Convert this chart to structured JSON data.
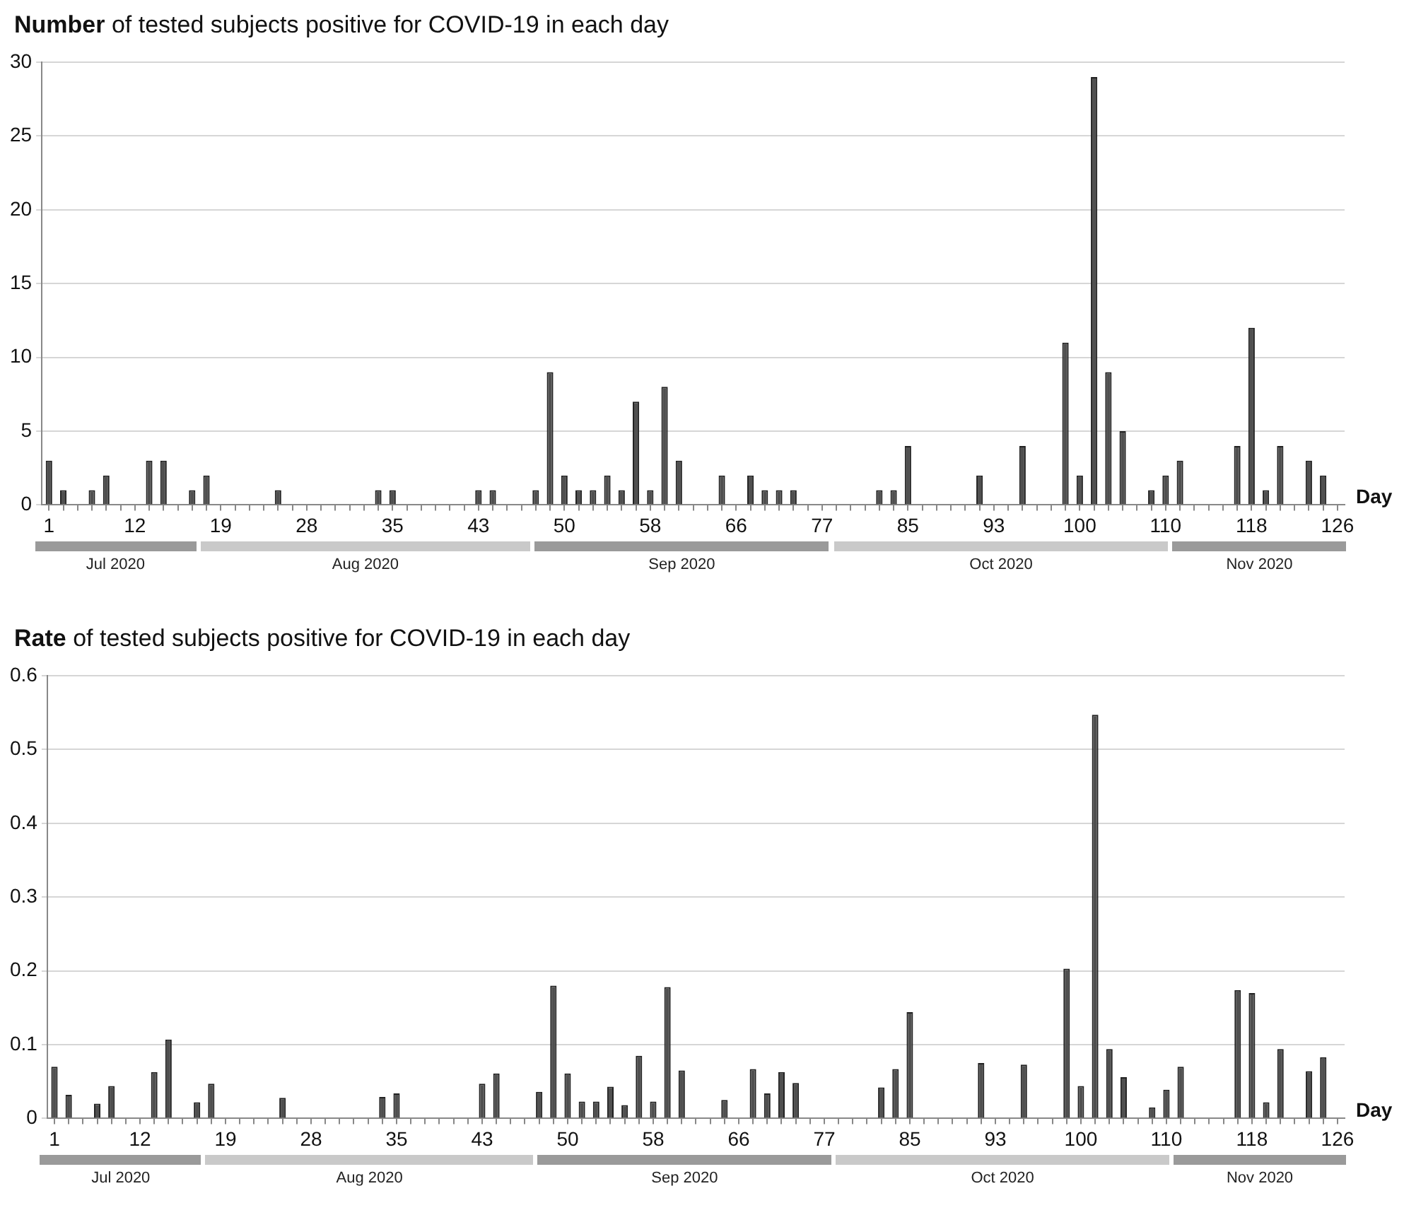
{
  "chart_data": [
    {
      "type": "bar",
      "title": "Number of tested subjects positive for COVID-19 in each day",
      "xlabel": "Day",
      "categories": [
        "1",
        null,
        null,
        null,
        null,
        null,
        "12",
        null,
        null,
        null,
        null,
        null,
        "19",
        null,
        null,
        null,
        null,
        null,
        "28",
        null,
        null,
        null,
        null,
        null,
        "35",
        null,
        null,
        null,
        null,
        null,
        "43",
        null,
        null,
        null,
        null,
        null,
        "50",
        null,
        null,
        null,
        null,
        null,
        "58",
        null,
        null,
        null,
        null,
        null,
        "66",
        null,
        null,
        null,
        null,
        null,
        "77",
        null,
        null,
        null,
        null,
        null,
        "85",
        null,
        null,
        null,
        null,
        null,
        "93",
        null,
        null,
        null,
        null,
        null,
        "100",
        null,
        null,
        null,
        null,
        null,
        "110",
        null,
        null,
        null,
        null,
        null,
        "118",
        null,
        null,
        null,
        null,
        null,
        "126"
      ],
      "values": [
        3,
        1,
        0,
        1,
        2,
        0,
        0,
        3,
        3,
        0,
        1,
        2,
        0,
        0,
        0,
        0,
        1,
        0,
        0,
        0,
        0,
        0,
        0,
        1,
        1,
        0,
        0,
        0,
        0,
        0,
        1,
        1,
        0,
        0,
        1,
        9,
        2,
        1,
        1,
        2,
        1,
        7,
        1,
        8,
        3,
        0,
        0,
        2,
        0,
        2,
        1,
        1,
        1,
        0,
        0,
        0,
        0,
        0,
        1,
        1,
        4,
        0,
        0,
        0,
        0,
        2,
        0,
        0,
        4,
        0,
        0,
        11,
        2,
        29,
        9,
        5,
        0,
        1,
        2,
        3,
        0,
        0,
        0,
        4,
        12,
        1,
        4,
        0,
        3,
        2,
        0
      ],
      "color": "#505050",
      "ylim": [
        0,
        30
      ],
      "yticks": [
        0,
        5,
        10,
        15,
        20,
        25,
        30
      ],
      "grid": "y",
      "annotations": [
        "Jul 2020",
        "Aug 2020",
        "Sep 2020",
        "Oct 2020",
        "Nov 2020"
      ]
    },
    {
      "type": "bar",
      "title": "Rate of tested subjects positive for COVID-19 in each day",
      "xlabel": "Day",
      "categories": [
        "1",
        null,
        null,
        null,
        null,
        null,
        "12",
        null,
        null,
        null,
        null,
        null,
        "19",
        null,
        null,
        null,
        null,
        null,
        "28",
        null,
        null,
        null,
        null,
        null,
        "35",
        null,
        null,
        null,
        null,
        null,
        "43",
        null,
        null,
        null,
        null,
        null,
        "50",
        null,
        null,
        null,
        null,
        null,
        "58",
        null,
        null,
        null,
        null,
        null,
        "66",
        null,
        null,
        null,
        null,
        null,
        "77",
        null,
        null,
        null,
        null,
        null,
        "85",
        null,
        null,
        null,
        null,
        null,
        "93",
        null,
        null,
        null,
        null,
        null,
        "100",
        null,
        null,
        null,
        null,
        null,
        "110",
        null,
        null,
        null,
        null,
        null,
        "118",
        null,
        null,
        null,
        null,
        null,
        "126"
      ],
      "values": [
        0.07,
        0.032,
        0,
        0.02,
        0.044,
        0,
        0,
        0.063,
        0.107,
        0,
        0.022,
        0.047,
        0,
        0,
        0,
        0,
        0.028,
        0,
        0,
        0,
        0,
        0,
        0,
        0.029,
        0.034,
        0,
        0,
        0,
        0,
        0,
        0.047,
        0.061,
        0,
        0,
        0.036,
        0.18,
        0.061,
        0.023,
        0.023,
        0.043,
        0.018,
        0.085,
        0.023,
        0.178,
        0.065,
        0,
        0,
        0.025,
        0,
        0.067,
        0.034,
        0.063,
        0.048,
        0,
        0,
        0,
        0,
        0,
        0.042,
        0.067,
        0.144,
        0,
        0,
        0,
        0,
        0.075,
        0,
        0,
        0.073,
        0,
        0,
        0.203,
        0.044,
        0.547,
        0.094,
        0.056,
        0,
        0.015,
        0.039,
        0.07,
        0,
        0,
        0,
        0.174,
        0.17,
        0.022,
        0.094,
        0,
        0.064,
        0.083,
        0
      ],
      "color": "#505050",
      "ylim": [
        0,
        0.6
      ],
      "yticks": [
        0,
        0.1,
        0.2,
        0.3,
        0.4,
        0.5,
        0.6
      ],
      "grid": "y",
      "annotations": [
        "Jul 2020",
        "Aug 2020",
        "Sep 2020",
        "Oct 2020",
        "Nov 2020"
      ]
    }
  ]
}
